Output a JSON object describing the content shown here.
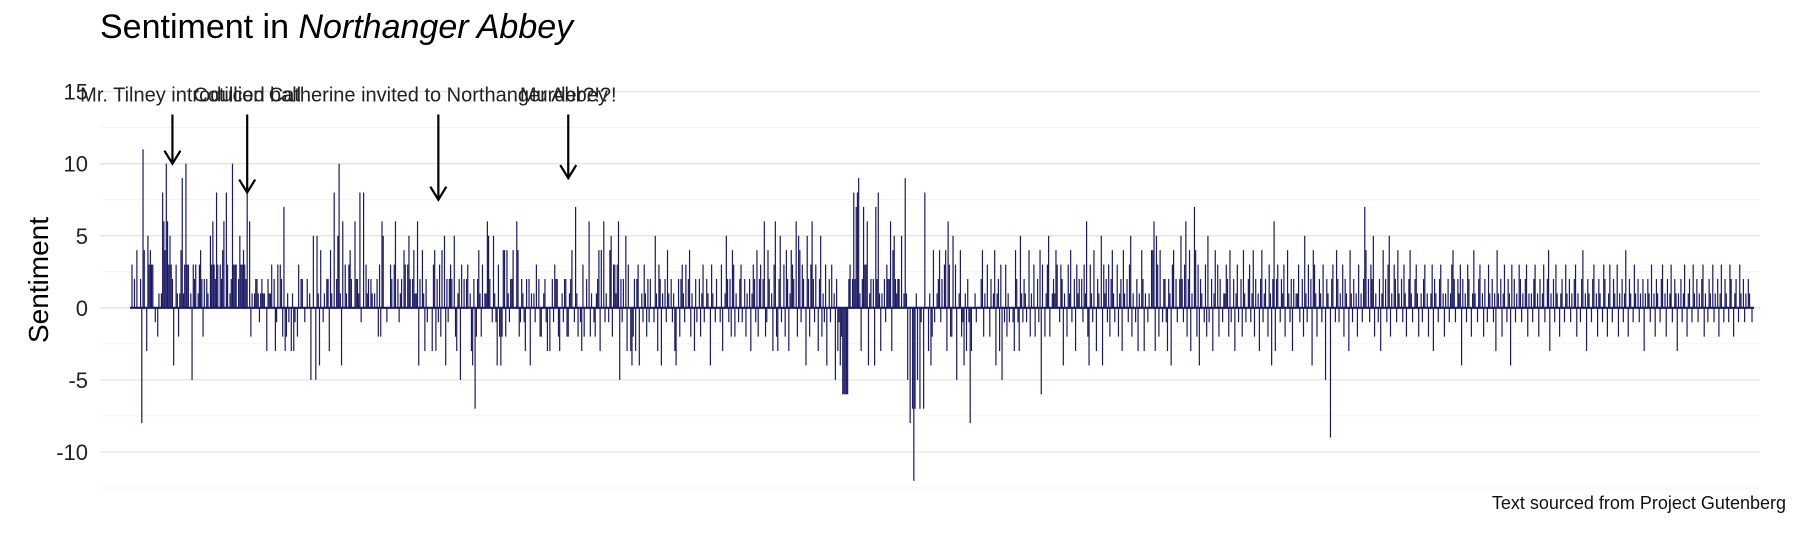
{
  "chart_data": {
    "type": "bar",
    "title_prefix": "Sentiment in ",
    "title_italic": "Northanger Abbey",
    "ylabel": "Sentiment",
    "xlabel": "",
    "caption": "Text sourced from Project Gutenberg",
    "ylim": [
      -12.5,
      16.5
    ],
    "yticks": [
      -10,
      -5,
      0,
      5,
      10,
      15
    ],
    "ytick_labels": [
      "-10",
      "-5",
      "0",
      "5",
      "10",
      "15"
    ],
    "grid": true,
    "bar_color": "#1c1a63",
    "annotations": [
      {
        "label": "Mr. Tilney introduced",
        "index": 33,
        "value": 10
      },
      {
        "label": "Cotillion ball",
        "index": 94,
        "value": 8
      },
      {
        "label": "Catherine invited to Northanger Abbey",
        "index": 250,
        "value": 7.5
      },
      {
        "label": "Murder?!?!",
        "index": 356,
        "value": 9
      }
    ],
    "values": [
      3,
      0,
      2,
      0,
      4,
      0,
      0,
      2,
      -8,
      11,
      4,
      0,
      -3,
      5,
      3,
      4,
      3,
      3,
      0,
      -1,
      0,
      -2,
      1,
      0,
      1,
      8,
      6,
      4,
      10,
      6,
      3,
      5,
      3,
      2,
      -4,
      0,
      3,
      1,
      -2,
      1,
      4,
      9,
      1,
      3,
      10,
      3,
      3,
      0,
      1,
      -5,
      3,
      2,
      3,
      0,
      1,
      3,
      4,
      2,
      -2,
      2,
      0,
      2,
      1,
      0,
      5,
      3,
      6,
      3,
      2,
      8,
      3,
      0,
      3,
      2,
      4,
      6,
      0,
      8,
      3,
      0,
      1,
      2,
      10,
      3,
      3,
      3,
      0,
      2,
      5,
      3,
      3,
      4,
      3,
      2,
      11,
      0,
      6,
      -2,
      1,
      0,
      1,
      2,
      2,
      1,
      -1,
      1,
      2,
      1,
      1,
      0,
      -3,
      2,
      1,
      1,
      3,
      0,
      2,
      -3,
      -1,
      3,
      0,
      3,
      2,
      -2,
      7,
      -3,
      -2,
      1,
      -1,
      0,
      -3,
      1,
      -3,
      -1,
      0,
      -2,
      3,
      0,
      2,
      2,
      0,
      -1,
      0,
      2,
      0,
      1,
      -5,
      0,
      5,
      0,
      -5,
      5,
      1,
      -4,
      4,
      0,
      -1,
      1,
      0,
      2,
      2,
      -3,
      4,
      1,
      0,
      8,
      0,
      2,
      5,
      10,
      1,
      -4,
      6,
      0,
      3,
      1,
      0,
      3,
      4,
      2,
      0,
      0,
      6,
      2,
      2,
      1,
      8,
      -1,
      0,
      8,
      0,
      3,
      1,
      2,
      0,
      2,
      1,
      0,
      1,
      0,
      2,
      -2,
      3,
      -2,
      6,
      5,
      0,
      0,
      -1,
      0,
      0,
      3,
      2,
      0,
      3,
      6,
      0,
      2,
      -1,
      1,
      2,
      0,
      4,
      3,
      0,
      3,
      5,
      2,
      0,
      2,
      4,
      1,
      1,
      6,
      -4,
      2,
      0,
      4,
      1,
      -3,
      2,
      -1,
      0,
      0,
      0,
      -3,
      3,
      4,
      -3,
      2,
      -1,
      3,
      -2,
      4,
      0,
      5,
      -4,
      2,
      -1,
      2,
      3,
      2,
      0,
      5,
      -2,
      -3,
      1,
      2,
      -5,
      3,
      0,
      2,
      0,
      2,
      3,
      0,
      1,
      -3,
      -4,
      2,
      -7,
      -2,
      2,
      4,
      1,
      -2,
      3,
      0,
      1,
      1,
      6,
      5,
      2,
      0,
      -1,
      5,
      1,
      -1,
      -4,
      3,
      -2,
      -4,
      -2,
      4,
      4,
      -2,
      4,
      1,
      -1,
      2,
      2,
      4,
      0,
      0,
      6,
      4,
      -2,
      -1,
      2,
      1,
      -1,
      -3,
      2,
      0,
      2,
      -4,
      1,
      0,
      1,
      -1,
      3,
      0,
      2,
      -2,
      -2,
      0,
      1,
      2,
      -1,
      -3,
      0,
      -3,
      0,
      2,
      -1,
      3,
      2,
      2,
      -2,
      -3,
      0,
      1,
      -1,
      2,
      2,
      -2,
      -2,
      1,
      2,
      4,
      0,
      -1,
      7,
      1,
      -2,
      0,
      -1,
      -3,
      3,
      -2,
      0,
      2,
      0,
      6,
      -2,
      1,
      0,
      -1,
      -2,
      1,
      2,
      4,
      -3,
      4,
      0,
      6,
      -1,
      1,
      0,
      -1,
      4,
      5,
      -2,
      3,
      3,
      1,
      3,
      6,
      -5,
      2,
      -1,
      2,
      0,
      5,
      -3,
      3,
      0,
      -3,
      -4,
      -2,
      2,
      -3,
      2,
      3,
      -4,
      0,
      1,
      -1,
      3,
      1,
      -2,
      2,
      -1,
      2,
      0,
      0,
      -1,
      5,
      1,
      -3,
      3,
      2,
      -4,
      1,
      0,
      2,
      -1,
      4,
      1,
      0,
      2,
      -1,
      1,
      -3,
      -4,
      0,
      2,
      -2,
      2,
      3,
      1,
      -1,
      3,
      0,
      2,
      4,
      -2,
      1,
      0,
      -3,
      2,
      -1,
      0,
      2,
      -2,
      1,
      3,
      -1,
      0,
      2,
      1,
      0,
      -4,
      3,
      1,
      0,
      -1,
      2,
      0,
      0,
      -1,
      3,
      -3,
      0,
      1,
      5,
      2,
      -1,
      2,
      -2,
      4,
      3,
      -2,
      1,
      0,
      -1,
      2,
      3,
      -1,
      0,
      2,
      -2,
      1,
      0,
      2,
      -3,
      1,
      3,
      2,
      -1,
      4,
      -2,
      2,
      3,
      0,
      2,
      6,
      -2,
      -1,
      4,
      2,
      0,
      1,
      -3,
      3,
      6,
      -2,
      -3,
      2,
      5,
      -1,
      0,
      3,
      -2,
      4,
      2,
      -3,
      1,
      4,
      3,
      2,
      0,
      6,
      -2,
      5,
      4,
      -1,
      3,
      2,
      0,
      -4,
      5,
      2,
      -2,
      3,
      6,
      2,
      -1,
      3,
      0,
      -3,
      2,
      5,
      -2,
      1,
      -1,
      3,
      -4,
      0,
      2,
      -1,
      3,
      0,
      1,
      -5,
      2,
      -3,
      -1,
      -4,
      -2,
      -6,
      -6,
      -6,
      -6,
      -6,
      2,
      3,
      0,
      2,
      8,
      2,
      7,
      8,
      9,
      1,
      -3,
      2,
      7,
      3,
      3,
      6,
      -4,
      1,
      2,
      0,
      2,
      -4,
      7,
      2,
      8,
      1,
      -3,
      1,
      0,
      2,
      -1,
      3,
      2,
      2,
      6,
      -3,
      4,
      5,
      2,
      1,
      2,
      2,
      0,
      5,
      0,
      1,
      9,
      1,
      -5,
      0,
      -8,
      0,
      -7,
      -12,
      -7,
      1,
      -5,
      0,
      -7,
      -1,
      0,
      -7,
      8,
      0,
      0,
      -3,
      1,
      -4,
      -2,
      4,
      -1,
      0,
      1,
      2,
      4,
      -1,
      2,
      0,
      3,
      4,
      -3,
      6,
      3,
      -2,
      -2,
      5,
      0,
      3,
      -5,
      0,
      1,
      4,
      -2,
      -1,
      -4,
      1,
      -3,
      2,
      -1,
      -8,
      -3,
      0,
      0,
      1,
      -1,
      0,
      0,
      0,
      2,
      4,
      -2,
      1,
      0,
      3,
      0,
      -2,
      2,
      0,
      1,
      4,
      -4,
      1,
      2,
      -3,
      3,
      -5,
      0,
      -1,
      3,
      -2,
      1,
      -1,
      0,
      0,
      -1,
      -3,
      4,
      2,
      -1,
      -3,
      5,
      1,
      -1,
      2,
      1,
      -1,
      0,
      4,
      -2,
      1,
      0,
      3,
      -2,
      0,
      2,
      -1,
      4,
      -6,
      3,
      0,
      -2,
      1,
      3,
      5,
      -2,
      0,
      1,
      2,
      1,
      4,
      3,
      0,
      -1,
      3,
      2,
      -4,
      1,
      0,
      -2,
      3,
      1,
      4,
      -1,
      0,
      2,
      -3,
      3,
      1,
      2,
      0,
      2,
      -1,
      3,
      1,
      6,
      -2,
      -4,
      3,
      1,
      -1,
      4,
      0,
      -3,
      2,
      1,
      0,
      5,
      -4,
      3,
      1,
      2,
      -1,
      3,
      -2,
      2,
      4,
      1,
      -1,
      0,
      3,
      -2,
      1,
      2,
      -3,
      4,
      1,
      0,
      2,
      -1,
      3,
      5,
      -2,
      1,
      0,
      -1,
      2,
      -3,
      1,
      0,
      4,
      2,
      -3,
      1,
      0,
      -1,
      1,
      0,
      4,
      4,
      6,
      -3,
      5,
      3,
      -2,
      4,
      0,
      -1,
      2,
      2,
      -1,
      -3,
      2,
      1,
      -4,
      3,
      4,
      0,
      2,
      -1,
      0,
      2,
      5,
      2,
      -1,
      3,
      6,
      -2,
      2,
      4,
      -3,
      1,
      0,
      7,
      4,
      -2,
      3,
      -4,
      2,
      1,
      0,
      -1,
      3,
      -2,
      5,
      -1,
      0,
      2,
      -3,
      1,
      4,
      0,
      3,
      -2,
      2,
      0,
      -1,
      1,
      1,
      3,
      2,
      -2,
      4,
      -1,
      0,
      2,
      -3,
      1,
      3,
      -1,
      0,
      2,
      -2,
      4,
      1,
      -1,
      0,
      2,
      3,
      -1,
      1,
      4,
      -2,
      2,
      0,
      1,
      -3,
      2,
      4,
      -1,
      1,
      2,
      0,
      -2,
      3,
      1,
      -4,
      2,
      6,
      -3,
      2,
      3,
      0,
      -1,
      2,
      1,
      3,
      -2,
      0,
      4,
      1,
      -1,
      2,
      -3,
      2,
      0,
      1,
      1,
      3,
      -1,
      0,
      2,
      -2,
      5,
      1,
      -1,
      3,
      0,
      2,
      -4,
      4,
      3,
      1,
      -2,
      0,
      2,
      1,
      -1,
      3,
      0,
      -5,
      2,
      1,
      0,
      -9,
      2,
      3,
      0,
      -1,
      4,
      2,
      -1,
      1,
      0,
      3,
      -2,
      2,
      1,
      0,
      -3,
      4,
      1,
      -1,
      2,
      0,
      1,
      -2,
      3,
      0,
      1,
      -1,
      2,
      7,
      4,
      0,
      2,
      -1,
      3,
      2,
      5,
      -2,
      1,
      0,
      -1,
      2,
      -3,
      1,
      4,
      0,
      2,
      -1,
      3,
      5,
      -2,
      1,
      0,
      3,
      2,
      -1,
      4,
      1,
      0,
      2,
      -1,
      3,
      1,
      -2,
      0,
      2,
      4,
      1,
      -1,
      0,
      2,
      3,
      1,
      -2,
      0,
      1,
      -1,
      2,
      3,
      0,
      1,
      -2,
      0,
      1,
      3,
      -3,
      2,
      1,
      0,
      -1,
      2,
      3,
      0,
      1,
      -2,
      1,
      0,
      2,
      -1,
      1,
      3,
      4,
      2,
      -1,
      0,
      2,
      1,
      3,
      -4,
      2,
      0,
      1,
      -1,
      3,
      2,
      0,
      -2,
      1,
      4,
      1,
      0,
      -1,
      2,
      3,
      0,
      1,
      -2,
      2,
      0,
      -1,
      3,
      1,
      0,
      2,
      -1,
      1,
      -3,
      4,
      1,
      0,
      2,
      -2,
      1,
      3,
      0,
      -1,
      2,
      1,
      -4,
      3,
      0,
      2,
      -1,
      1,
      0,
      3,
      2,
      -1,
      1,
      0,
      2,
      3,
      -2,
      1,
      0,
      1,
      -1,
      2,
      3,
      0,
      1,
      -2,
      2,
      0,
      1,
      3,
      -1,
      0,
      2,
      4,
      -3,
      1,
      0,
      2,
      -1,
      3,
      1,
      0,
      -2,
      1,
      2,
      0,
      -1,
      3,
      1,
      0,
      2,
      -1,
      1,
      0,
      2,
      3,
      -2,
      1,
      0,
      -1,
      2,
      4,
      0,
      1,
      -3,
      2,
      1,
      0,
      -1,
      2,
      3,
      0,
      1,
      -2,
      2,
      1,
      0,
      -1,
      3,
      2,
      0,
      -2,
      1,
      3,
      0,
      -1,
      2,
      1,
      0,
      3,
      -2,
      1,
      0,
      2,
      -1,
      1,
      4,
      0,
      -2,
      2,
      1,
      0,
      -1,
      3,
      1,
      0,
      2,
      -1,
      1,
      0,
      2,
      -3,
      1,
      0,
      2,
      1,
      -1,
      3,
      0,
      1,
      -2,
      2,
      1,
      0,
      -1,
      2,
      3,
      0,
      1,
      -2,
      2,
      0,
      1,
      3,
      -1,
      0,
      2,
      1,
      -3,
      1,
      0,
      2,
      -1,
      1,
      3,
      0,
      -2,
      1,
      2,
      0,
      -1,
      3,
      1,
      0,
      2,
      -1,
      1,
      0,
      2,
      3,
      -2,
      1,
      0,
      -1,
      2,
      1,
      0,
      3,
      -1,
      1,
      0,
      2,
      -2,
      1,
      3,
      0,
      -1,
      2,
      1,
      0,
      -1,
      3,
      2,
      0,
      -2,
      1,
      2,
      0,
      -1,
      3,
      1,
      0,
      2,
      -1,
      1,
      0,
      2,
      1,
      0,
      -1
    ]
  }
}
